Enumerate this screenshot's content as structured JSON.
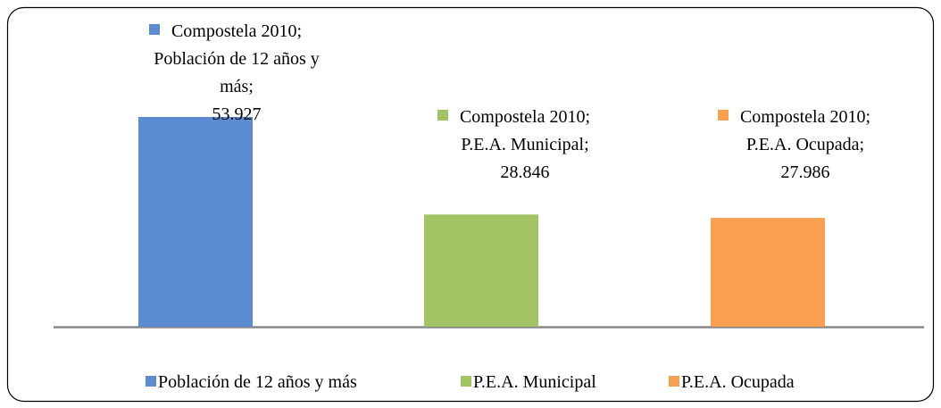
{
  "chart_data": {
    "type": "bar",
    "categories": [
      "Compostela 2010"
    ],
    "series": [
      {
        "name": "Población de 12 años y más",
        "color": "#5b8bd0",
        "values": [
          53927
        ],
        "value_labels": [
          "53.927"
        ]
      },
      {
        "name": "P.E.A. Municipal",
        "color": "#a3c465",
        "values": [
          28846
        ],
        "value_labels": [
          "28.846"
        ]
      },
      {
        "name": "P.E.A. Ocupada",
        "color": "#f9a050",
        "values": [
          27986
        ],
        "value_labels": [
          "27.986"
        ]
      }
    ],
    "legend": "bottom"
  }
}
